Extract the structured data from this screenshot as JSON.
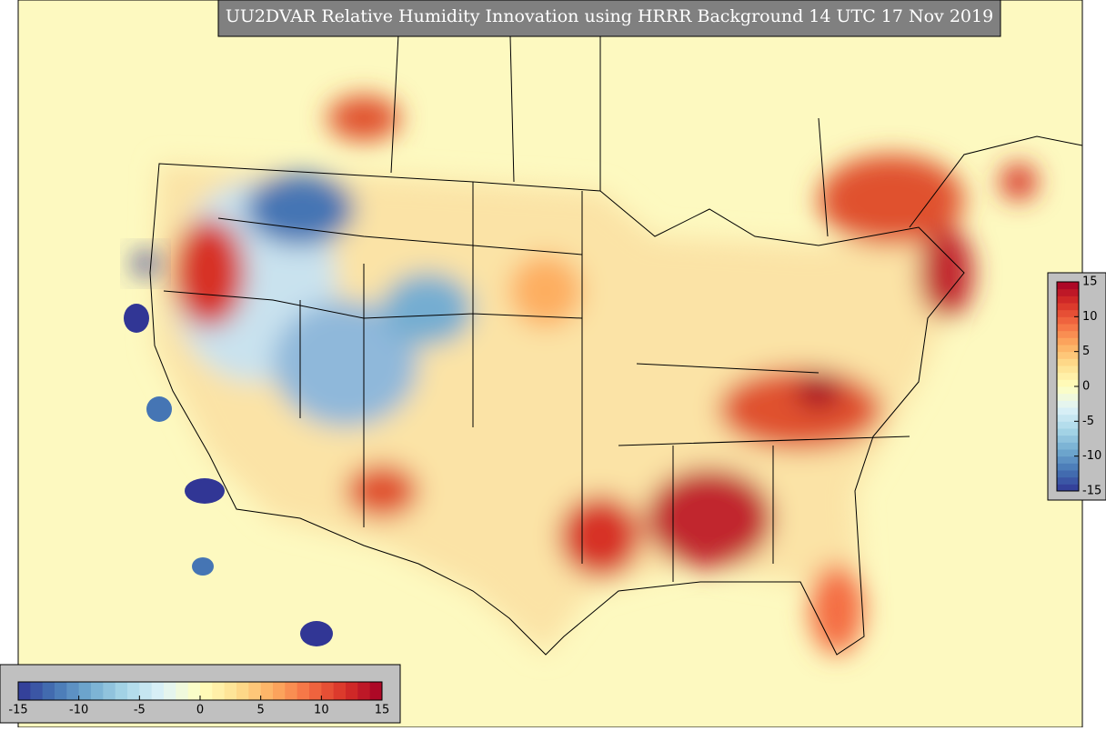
{
  "title": "UU2DVAR Relative Humidity Innovation using HRRR Background 14 UTC 17 Nov 2019",
  "colormap": [
    "#313695",
    "#4575b4",
    "#74add1",
    "#abd9e9",
    "#e0f3f8",
    "#ffffbf",
    "#fee090",
    "#fdae61",
    "#f46d43",
    "#d73027",
    "#a50026"
  ],
  "colorbars": [
    {
      "orientation": "vertical",
      "lim": [
        -15,
        15
      ],
      "ticks": [
        15,
        10,
        5,
        0,
        -5,
        -10,
        -15
      ]
    },
    {
      "orientation": "horizontal",
      "lim": [
        -15,
        15
      ],
      "ticks": [
        -15,
        -10,
        -5,
        0,
        5,
        10,
        15
      ]
    }
  ]
}
